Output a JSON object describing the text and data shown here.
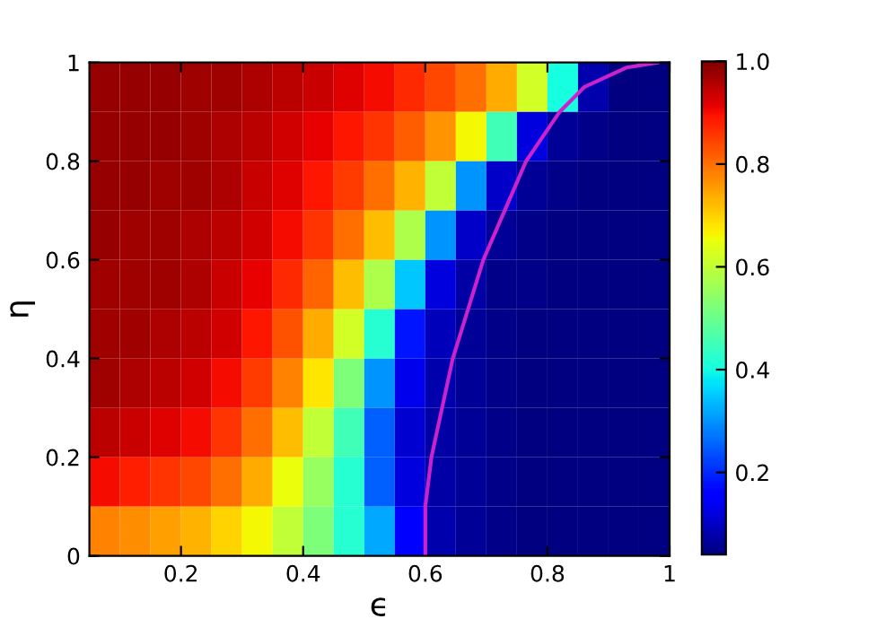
{
  "chart_data": {
    "type": "heatmap",
    "xlabel": "ϵ",
    "ylabel": "η",
    "x": [
      0.075,
      0.125,
      0.175,
      0.225,
      0.275,
      0.325,
      0.375,
      0.425,
      0.475,
      0.525,
      0.575,
      0.625,
      0.675,
      0.725,
      0.775,
      0.825,
      0.875,
      0.925,
      0.975
    ],
    "y": [
      0.95,
      0.85,
      0.75,
      0.65,
      0.55,
      0.45,
      0.35,
      0.25,
      0.15,
      0.05
    ],
    "xlim": [
      0.05,
      1
    ],
    "xticks": [
      0.2,
      0.4,
      0.6,
      0.8,
      1
    ],
    "ylim": [
      0,
      1
    ],
    "yticks": [
      0,
      0.2,
      0.4,
      0.6,
      0.8,
      1
    ],
    "clim": [
      0.04,
      1.0
    ],
    "cticks": [
      0.2,
      0.4,
      0.6,
      0.8,
      {
        "value": 1.0,
        "label": "1.0"
      }
    ],
    "cells": [
      [
        0.98,
        0.98,
        0.98,
        0.97,
        0.97,
        0.96,
        0.95,
        0.94,
        0.92,
        0.9,
        0.87,
        0.84,
        0.8,
        0.74,
        0.62,
        0.4,
        0.08,
        0.04,
        0.04
      ],
      [
        0.98,
        0.98,
        0.98,
        0.97,
        0.96,
        0.95,
        0.93,
        0.91,
        0.89,
        0.86,
        0.82,
        0.76,
        0.66,
        0.45,
        0.12,
        0.06,
        0.05,
        0.04,
        0.04
      ],
      [
        0.98,
        0.98,
        0.97,
        0.97,
        0.96,
        0.94,
        0.92,
        0.89,
        0.85,
        0.8,
        0.73,
        0.6,
        0.3,
        0.1,
        0.06,
        0.05,
        0.04,
        0.04,
        0.04
      ],
      [
        0.98,
        0.97,
        0.97,
        0.96,
        0.95,
        0.93,
        0.9,
        0.86,
        0.8,
        0.72,
        0.58,
        0.3,
        0.1,
        0.06,
        0.05,
        0.04,
        0.04,
        0.04,
        0.04
      ],
      [
        0.97,
        0.97,
        0.97,
        0.96,
        0.94,
        0.91,
        0.87,
        0.81,
        0.72,
        0.58,
        0.35,
        0.12,
        0.07,
        0.05,
        0.05,
        0.04,
        0.04,
        0.04,
        0.04
      ],
      [
        0.97,
        0.97,
        0.96,
        0.95,
        0.93,
        0.89,
        0.83,
        0.74,
        0.62,
        0.42,
        0.18,
        0.09,
        0.06,
        0.05,
        0.04,
        0.04,
        0.04,
        0.04,
        0.04
      ],
      [
        0.97,
        0.96,
        0.95,
        0.93,
        0.9,
        0.85,
        0.78,
        0.68,
        0.52,
        0.3,
        0.13,
        0.08,
        0.06,
        0.05,
        0.04,
        0.04,
        0.04,
        0.04,
        0.04
      ],
      [
        0.95,
        0.94,
        0.92,
        0.9,
        0.86,
        0.8,
        0.72,
        0.6,
        0.45,
        0.25,
        0.11,
        0.07,
        0.06,
        0.05,
        0.04,
        0.04,
        0.04,
        0.04,
        0.04
      ],
      [
        0.9,
        0.88,
        0.86,
        0.84,
        0.8,
        0.74,
        0.65,
        0.55,
        0.42,
        0.25,
        0.12,
        0.07,
        0.06,
        0.05,
        0.04,
        0.04,
        0.04,
        0.04,
        0.04
      ],
      [
        0.78,
        0.77,
        0.75,
        0.73,
        0.7,
        0.66,
        0.6,
        0.52,
        0.42,
        0.32,
        0.15,
        0.08,
        0.06,
        0.05,
        0.04,
        0.04,
        0.04,
        0.04,
        0.04
      ]
    ],
    "series": [
      {
        "type": "line",
        "color": "#cc22cc",
        "x": [
          0.6,
          0.6,
          0.61,
          0.645,
          0.695,
          0.765,
          0.82,
          0.86,
          0.93,
          0.98
        ],
        "values": [
          0,
          0.1,
          0.2,
          0.4,
          0.6,
          0.8,
          0.9,
          0.95,
          0.99,
          1.0
        ]
      }
    ]
  }
}
